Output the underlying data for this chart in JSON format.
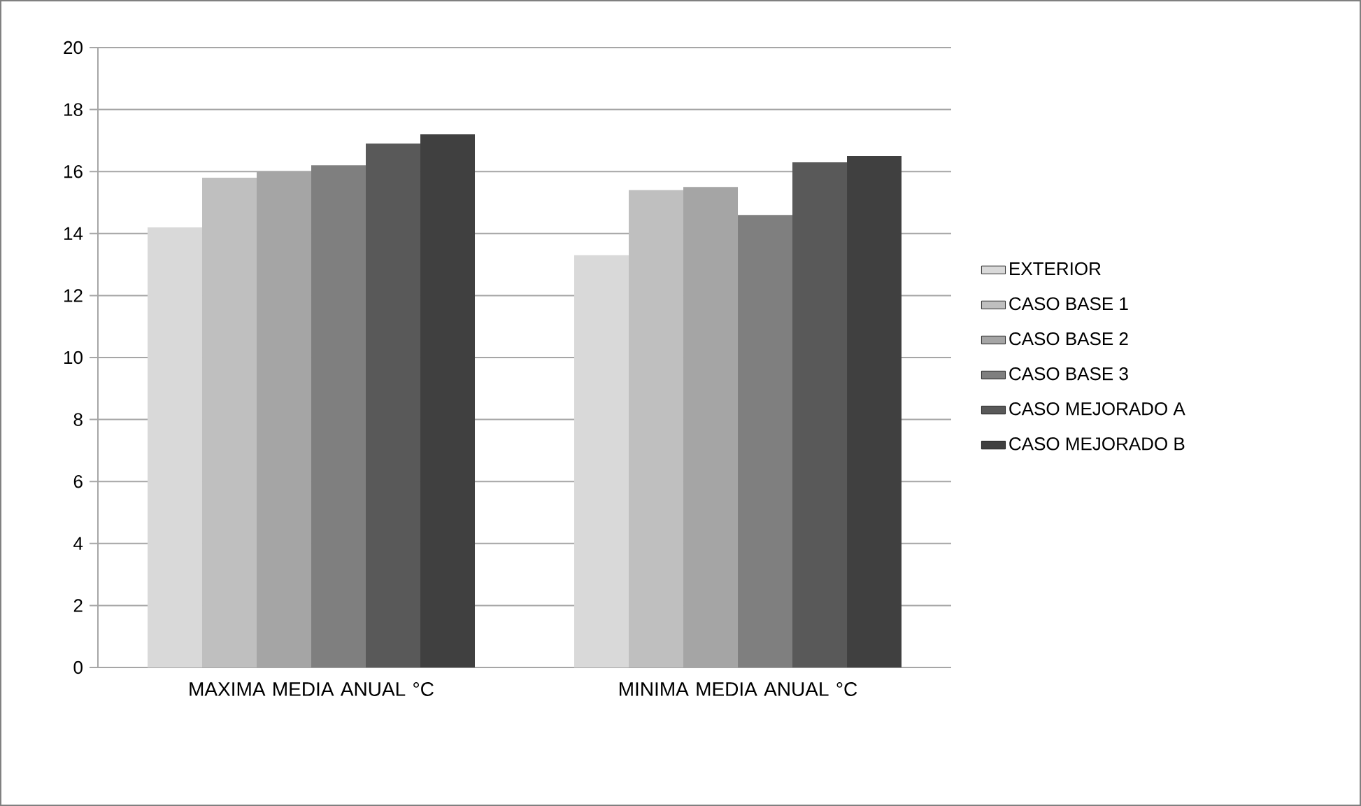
{
  "chart_data": {
    "type": "bar",
    "categories": [
      "MAXIMA  MEDIA ANUAL °C",
      "MINIMA  MEDIA ANUAL °C"
    ],
    "series": [
      {
        "name": "EXTERIOR",
        "color": "#d9d9d9",
        "values": [
          14.2,
          13.3
        ]
      },
      {
        "name": "CASO BASE  1",
        "color": "#bfbfbf",
        "values": [
          15.8,
          15.4
        ]
      },
      {
        "name": "CASO BASE  2",
        "color": "#a5a5a5",
        "values": [
          16.0,
          15.5
        ]
      },
      {
        "name": "CASO BASE  3",
        "color": "#7f7f7f",
        "values": [
          16.2,
          14.6
        ]
      },
      {
        "name": "CASO MEJORADO  A",
        "color": "#595959",
        "values": [
          16.9,
          16.3
        ]
      },
      {
        "name": "CASO MEJORADO  B",
        "color": "#404040",
        "values": [
          17.2,
          16.5
        ]
      }
    ],
    "ylim": [
      0,
      20
    ],
    "yticks": [
      0,
      2,
      4,
      6,
      8,
      10,
      12,
      14,
      16,
      18,
      20
    ],
    "grid": "y",
    "legend": "right"
  }
}
